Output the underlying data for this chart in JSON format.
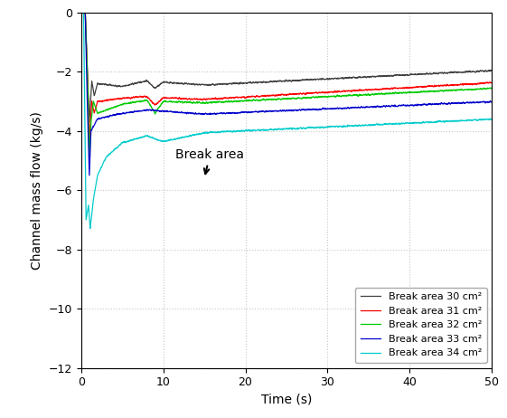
{
  "title": "",
  "xlabel": "Time (s)",
  "ylabel": "Channel mass flow (kg/s)",
  "xlim": [
    0,
    50
  ],
  "ylim": [
    -12,
    0
  ],
  "xticks": [
    0,
    10,
    20,
    30,
    40,
    50
  ],
  "yticks": [
    0,
    -2,
    -4,
    -6,
    -8,
    -10,
    -12
  ],
  "legend_labels": [
    "Break area 30 cm²",
    "Break area 31 cm²",
    "Break area 32 cm²",
    "Break area 33 cm²",
    "Break area 34 cm²"
  ],
  "line_colors": [
    "#404040",
    "#ff0000",
    "#00cc00",
    "#0000cc",
    "#00cccc"
  ],
  "annotation_text": "Break area",
  "background_color": "#ffffff"
}
